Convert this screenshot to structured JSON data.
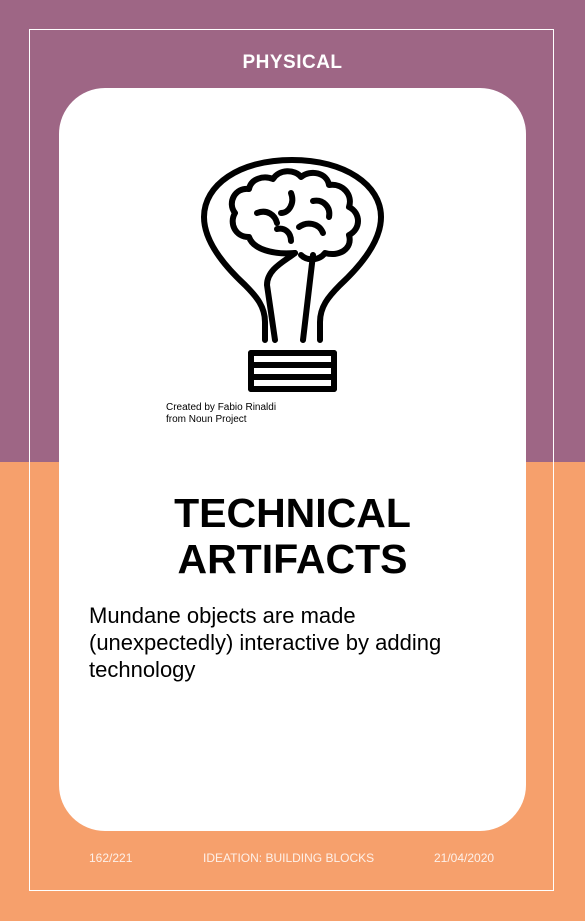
{
  "card": {
    "category": "PHYSICAL",
    "icon": "lightbulb-brain-icon",
    "credit_line1": "Created by Fabio Rinaldi",
    "credit_line2": "from Noun Project",
    "title_line1": "TECHNICAL",
    "title_line2": "ARTIFACTS",
    "description": "Mundane objects are made (unexpectedly) interactive by adding technology"
  },
  "footer": {
    "page": "162/221",
    "section": "IDEATION: BUILDING BLOCKS",
    "date": "21/04/2020"
  },
  "colors": {
    "top": "#9e6685",
    "bottom": "#f6a06c",
    "card": "#ffffff",
    "text": "#000000"
  }
}
